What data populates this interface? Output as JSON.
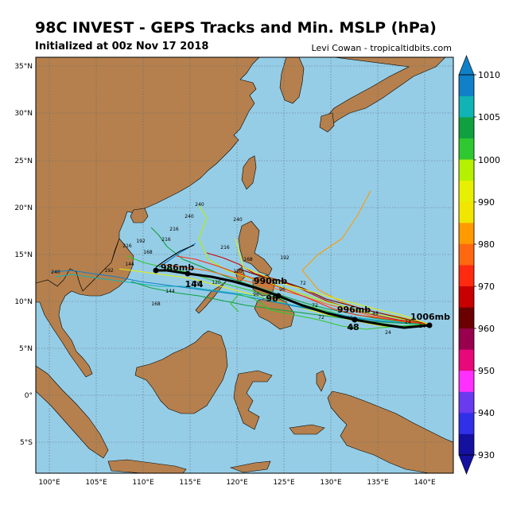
{
  "title": "98C INVEST - GEPS Tracks and Min. MSLP (hPa)",
  "subtitle": "Initialized at 00z Nov 17 2018",
  "credit": "Levi Cowan - tropicaltidbits.com",
  "axes": {
    "lon_labels": [
      "100°E",
      "105°E",
      "110°E",
      "115°E",
      "120°E",
      "125°E",
      "130°E",
      "135°E",
      "140°E"
    ],
    "lat_labels": [
      "35°N",
      "30°N",
      "25°N",
      "20°N",
      "15°N",
      "10°N",
      "5°N",
      "0°",
      "5°S"
    ]
  },
  "colorbar": {
    "ticks": [
      "1010",
      "1005",
      "1000",
      "990",
      "980",
      "970",
      "960",
      "950",
      "940",
      "930"
    ],
    "colors": [
      "#1410a0",
      "#3030e8",
      "#6a3af0",
      "#ff30ff",
      "#e8087a",
      "#98004e",
      "#6a0000",
      "#c80000",
      "#ff2a10",
      "#ff6810",
      "#ff9a00",
      "#f0e600",
      "#e6f000",
      "#b4f000",
      "#30c830",
      "#10a040",
      "#10b4b4",
      "#1080c8"
    ]
  },
  "annotations": [
    {
      "text": "986mb"
    },
    {
      "text": "144"
    },
    {
      "text": "990mb"
    },
    {
      "text": "96"
    },
    {
      "text": "996mb"
    },
    {
      "text": "48"
    },
    {
      "text": "1006mb"
    }
  ],
  "hour_labels": [
    "240",
    "240",
    "216",
    "216",
    "192",
    "168",
    "144",
    "120",
    "120",
    "96",
    "72",
    "72",
    "48",
    "48",
    "24",
    "24",
    "216",
    "240",
    "192",
    "168",
    "144",
    "120",
    "96",
    "72",
    "48",
    "24",
    "240",
    "216",
    "192",
    "168"
  ],
  "map_colors": {
    "ocean": "#96cde6",
    "land": "#b5804d",
    "grid": "#5a6a7a",
    "ensemble_mean": "#000000"
  }
}
